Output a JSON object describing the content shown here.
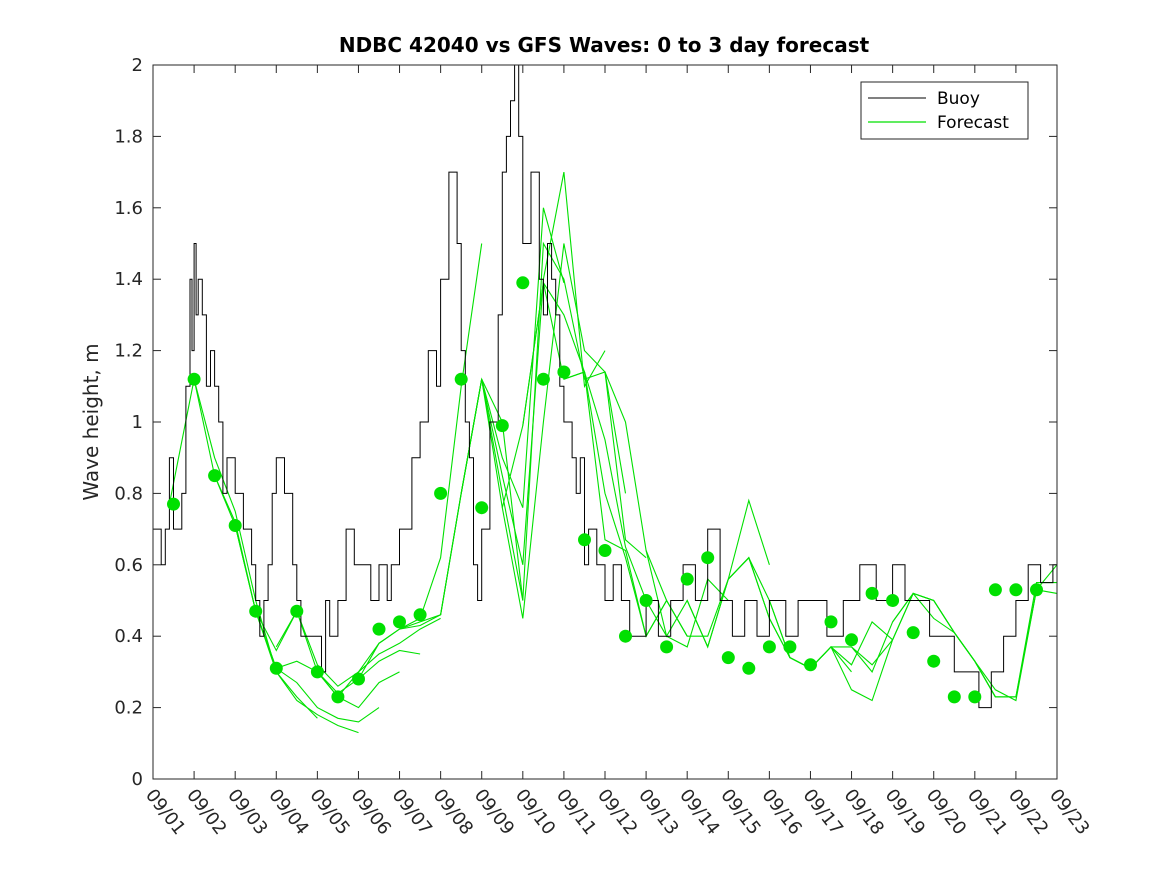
{
  "chart_data": {
    "type": "line",
    "title": "NDBC 42040 vs GFS Waves: 0 to 3 day forecast",
    "xlabel": "",
    "ylabel": "Wave height, m",
    "xlim": [
      0,
      22
    ],
    "ylim": [
      0,
      2
    ],
    "xticks": [
      0,
      1,
      2,
      3,
      4,
      5,
      6,
      7,
      8,
      9,
      10,
      11,
      12,
      13,
      14,
      15,
      16,
      17,
      18,
      19,
      20,
      21,
      22
    ],
    "xtick_labels": [
      "09/01",
      "09/02",
      "09/03",
      "09/04",
      "09/05",
      "09/06",
      "09/07",
      "09/08",
      "09/09",
      "09/10",
      "09/11",
      "09/12",
      "09/13",
      "09/14",
      "09/15",
      "09/16",
      "09/17",
      "09/18",
      "09/19",
      "09/20",
      "09/21",
      "09/22",
      "09/23"
    ],
    "yticks": [
      0,
      0.2,
      0.4,
      0.6,
      0.8,
      1,
      1.2,
      1.4,
      1.6,
      1.8,
      2
    ],
    "ytick_labels": [
      "0",
      "0.2",
      "0.4",
      "0.6",
      "0.8",
      "1",
      "1.2",
      "1.4",
      "1.6",
      "1.8",
      "2"
    ],
    "legend": {
      "position": "top-right",
      "entries": [
        {
          "label": "Buoy",
          "color": "#000000"
        },
        {
          "label": "Forecast",
          "color": "#00e000"
        }
      ]
    },
    "buoy": {
      "name": "Buoy",
      "color": "#000000",
      "x": [
        0,
        0.2,
        0.3,
        0.4,
        0.5,
        0.7,
        0.8,
        0.9,
        0.95,
        1.0,
        1.05,
        1.1,
        1.2,
        1.3,
        1.4,
        1.5,
        1.6,
        1.7,
        1.8,
        2.0,
        2.2,
        2.4,
        2.5,
        2.6,
        2.7,
        2.8,
        2.9,
        3.0,
        3.2,
        3.4,
        3.5,
        3.6,
        3.7,
        3.8,
        3.9,
        4.0,
        4.1,
        4.2,
        4.3,
        4.5,
        4.7,
        4.9,
        5.0,
        5.2,
        5.3,
        5.5,
        5.7,
        5.8,
        6.0,
        6.3,
        6.5,
        6.7,
        6.9,
        7.0,
        7.2,
        7.4,
        7.5,
        7.6,
        7.7,
        7.8,
        7.9,
        8.0,
        8.2,
        8.4,
        8.5,
        8.6,
        8.7,
        8.8,
        8.9,
        9.0,
        9.2,
        9.4,
        9.5,
        9.6,
        9.7,
        9.8,
        9.9,
        10.0,
        10.1,
        10.2,
        10.3,
        10.4,
        10.5,
        10.6,
        10.8,
        11.0,
        11.2,
        11.4,
        11.6,
        11.8,
        12.0,
        12.3,
        12.6,
        12.9,
        13.2,
        13.5,
        13.8,
        14.1,
        14.4,
        14.7,
        15.0,
        15.2,
        15.4,
        15.7,
        16.0,
        16.4,
        16.8,
        17.2,
        17.6,
        18.0,
        18.3,
        18.6,
        18.9,
        19.2,
        19.5,
        19.8,
        20.1,
        20.4,
        20.7,
        21.0,
        21.3,
        21.6,
        21.9,
        22.0
      ],
      "y": [
        0.7,
        0.6,
        0.7,
        0.9,
        0.7,
        0.8,
        1.1,
        1.4,
        1.2,
        1.5,
        1.3,
        1.4,
        1.3,
        1.1,
        1.2,
        1.1,
        1.0,
        0.8,
        0.9,
        0.8,
        0.7,
        0.6,
        0.5,
        0.4,
        0.5,
        0.6,
        0.8,
        0.9,
        0.8,
        0.6,
        0.5,
        0.4,
        0.4,
        0.4,
        0.4,
        0.4,
        0.3,
        0.5,
        0.4,
        0.5,
        0.7,
        0.6,
        0.6,
        0.6,
        0.5,
        0.6,
        0.5,
        0.6,
        0.7,
        0.9,
        1.0,
        1.2,
        1.1,
        1.4,
        1.7,
        1.5,
        1.2,
        1.0,
        0.9,
        0.6,
        0.5,
        0.7,
        1.0,
        1.3,
        1.7,
        1.8,
        1.9,
        2.0,
        1.8,
        1.5,
        1.7,
        1.4,
        1.3,
        1.5,
        1.4,
        1.3,
        1.1,
        1.0,
        1.0,
        0.9,
        0.8,
        0.9,
        0.6,
        0.7,
        0.6,
        0.5,
        0.6,
        0.5,
        0.4,
        0.4,
        0.5,
        0.4,
        0.5,
        0.6,
        0.5,
        0.7,
        0.5,
        0.4,
        0.5,
        0.4,
        0.5,
        0.5,
        0.4,
        0.5,
        0.5,
        0.4,
        0.5,
        0.6,
        0.5,
        0.6,
        0.5,
        0.5,
        0.4,
        0.4,
        0.3,
        0.3,
        0.2,
        0.3,
        0.4,
        0.5,
        0.6,
        0.55,
        0.6,
        0.6
      ]
    },
    "forecast_runs": [
      {
        "x": [
          0.4,
          1.0,
          1.5,
          2.0,
          2.5,
          3.0,
          3.5,
          4.0
        ],
        "y": [
          0.77,
          1.12,
          0.9,
          0.75,
          0.5,
          0.3,
          0.23,
          0.17
        ]
      },
      {
        "x": [
          1.0,
          1.5,
          2.0,
          2.5,
          3.0,
          3.5,
          4.0,
          4.5,
          5.0
        ],
        "y": [
          1.12,
          0.85,
          0.72,
          0.47,
          0.3,
          0.22,
          0.18,
          0.15,
          0.13
        ]
      },
      {
        "x": [
          1.5,
          2.0,
          2.5,
          3.0,
          3.5,
          4.0,
          4.5,
          5.0,
          5.5
        ],
        "y": [
          0.85,
          0.71,
          0.47,
          0.31,
          0.27,
          0.2,
          0.17,
          0.16,
          0.2
        ]
      },
      {
        "x": [
          2.0,
          2.5,
          3.0,
          3.5,
          4.0,
          4.5,
          5.0,
          5.5,
          6.0
        ],
        "y": [
          0.71,
          0.47,
          0.31,
          0.33,
          0.3,
          0.23,
          0.2,
          0.27,
          0.3
        ]
      },
      {
        "x": [
          2.5,
          3.0,
          3.5,
          4.0,
          4.5,
          5.0,
          5.5,
          6.0,
          6.5
        ],
        "y": [
          0.47,
          0.36,
          0.47,
          0.3,
          0.24,
          0.28,
          0.33,
          0.36,
          0.35
        ]
      },
      {
        "x": [
          3.0,
          3.5,
          4.0,
          4.5,
          5.0,
          5.5,
          6.0,
          6.5,
          7.0
        ],
        "y": [
          0.37,
          0.47,
          0.32,
          0.26,
          0.3,
          0.35,
          0.38,
          0.42,
          0.45
        ]
      },
      {
        "x": [
          4.0,
          4.5,
          5.0,
          5.5,
          6.0,
          6.5,
          7.0,
          7.5,
          8.0
        ],
        "y": [
          0.3,
          0.23,
          0.3,
          0.38,
          0.42,
          0.45,
          0.62,
          1.1,
          1.5
        ]
      },
      {
        "x": [
          5.0,
          5.5,
          6.0,
          6.5,
          7.0,
          7.5,
          8.0,
          8.5,
          9.0
        ],
        "y": [
          0.28,
          0.38,
          0.42,
          0.43,
          0.46,
          0.8,
          1.12,
          1.0,
          0.5
        ]
      },
      {
        "x": [
          6.0,
          6.5,
          7.0,
          7.5,
          8.0,
          8.5,
          9.0,
          9.5,
          10.0
        ],
        "y": [
          0.42,
          0.44,
          0.46,
          0.8,
          1.12,
          0.9,
          0.76,
          1.6,
          1.39
        ]
      },
      {
        "x": [
          7.0,
          7.5,
          8.0,
          8.5,
          9.0,
          9.5,
          10.0,
          10.5,
          11.0
        ],
        "y": [
          0.46,
          0.8,
          1.12,
          0.85,
          0.6,
          1.4,
          1.7,
          1.1,
          1.2
        ]
      },
      {
        "x": [
          7.5,
          8.0,
          8.5,
          9.0,
          9.5,
          10.0,
          10.5,
          11.0,
          11.5
        ],
        "y": [
          0.8,
          1.12,
          0.8,
          0.5,
          1.5,
          1.4,
          1.12,
          1.14,
          0.8
        ]
      },
      {
        "x": [
          8.0,
          8.5,
          9.0,
          9.5,
          10.0,
          10.5,
          11.0,
          11.5,
          12.0
        ],
        "y": [
          1.12,
          0.76,
          0.45,
          1.0,
          1.5,
          1.2,
          1.14,
          0.67,
          0.62
        ]
      },
      {
        "x": [
          8.5,
          9.0,
          9.5,
          10.0,
          10.5,
          11.0,
          11.5,
          12.0,
          12.5
        ],
        "y": [
          0.76,
          0.99,
          1.39,
          1.3,
          1.14,
          0.67,
          0.64,
          0.4,
          0.5
        ]
      },
      {
        "x": [
          9.0,
          9.5,
          10.0,
          10.5,
          11.0,
          11.5,
          12.0,
          12.5,
          13.0
        ],
        "y": [
          0.99,
          1.39,
          1.12,
          1.14,
          0.8,
          0.62,
          0.4,
          0.5,
          0.4
        ]
      },
      {
        "x": [
          10.0,
          10.5,
          11.0,
          11.5,
          12.0,
          12.5,
          13.0,
          13.5,
          14.0
        ],
        "y": [
          1.12,
          1.14,
          0.95,
          0.65,
          0.5,
          0.4,
          0.37,
          0.56,
          0.5
        ]
      },
      {
        "x": [
          11.0,
          11.5,
          12.0,
          12.5,
          13.0,
          13.5,
          14.0,
          14.5,
          15.0
        ],
        "y": [
          1.14,
          1.0,
          0.64,
          0.5,
          0.4,
          0.4,
          0.56,
          0.78,
          0.6
        ]
      },
      {
        "x": [
          12.0,
          12.5,
          13.0,
          13.5,
          14.0,
          14.5,
          15.0,
          15.5,
          16.0
        ],
        "y": [
          0.64,
          0.4,
          0.5,
          0.37,
          0.56,
          0.62,
          0.5,
          0.34,
          0.31
        ]
      },
      {
        "x": [
          13.0,
          13.5,
          14.0,
          14.5,
          15.0,
          15.5,
          16.0,
          16.5,
          17.0
        ],
        "y": [
          0.5,
          0.37,
          0.56,
          0.62,
          0.45,
          0.34,
          0.31,
          0.37,
          0.3
        ]
      },
      {
        "x": [
          14.0,
          14.5,
          15.0,
          15.5,
          16.0,
          16.5,
          17.0,
          17.5,
          18.0
        ],
        "y": [
          0.56,
          0.62,
          0.45,
          0.34,
          0.31,
          0.37,
          0.32,
          0.44,
          0.39
        ]
      },
      {
        "x": [
          15.0,
          15.5,
          16.0,
          16.5,
          17.0,
          17.5,
          18.0,
          18.5,
          19.0
        ],
        "y": [
          0.5,
          0.34,
          0.31,
          0.37,
          0.25,
          0.22,
          0.39,
          0.52,
          0.5
        ]
      },
      {
        "x": [
          16.0,
          16.5,
          17.0,
          17.5,
          18.0,
          18.5,
          19.0,
          19.5,
          20.0
        ],
        "y": [
          0.31,
          0.37,
          0.37,
          0.3,
          0.44,
          0.52,
          0.5,
          0.41,
          0.33
        ]
      },
      {
        "x": [
          17.0,
          17.5,
          18.0,
          18.5,
          19.0,
          19.5,
          20.0,
          20.5,
          21.0
        ],
        "y": [
          0.37,
          0.32,
          0.39,
          0.52,
          0.45,
          0.41,
          0.33,
          0.23,
          0.23
        ]
      },
      {
        "x": [
          18.0,
          18.5,
          19.0,
          19.5,
          20.0,
          20.5,
          21.0,
          21.5,
          22.0
        ],
        "y": [
          0.44,
          0.52,
          0.5,
          0.41,
          0.33,
          0.23,
          0.23,
          0.55,
          0.55
        ]
      },
      {
        "x": [
          19.0,
          19.5,
          20.0,
          20.5,
          21.0,
          21.5,
          22.0
        ],
        "y": [
          0.5,
          0.41,
          0.33,
          0.25,
          0.22,
          0.53,
          0.6
        ]
      },
      {
        "x": [
          20.0,
          20.5,
          21.0,
          21.5,
          22.0
        ],
        "y": [
          0.33,
          0.23,
          0.23,
          0.53,
          0.52
        ]
      }
    ],
    "forecast_points": {
      "name": "Forecast",
      "color": "#00e000",
      "x": [
        0.5,
        1.0,
        1.5,
        2.0,
        2.5,
        3.0,
        3.5,
        4.0,
        4.5,
        5.0,
        5.5,
        6.0,
        6.5,
        7.0,
        7.5,
        8.0,
        8.5,
        9.0,
        9.5,
        10.0,
        10.5,
        11.0,
        11.5,
        12.0,
        12.5,
        13.0,
        13.5,
        14.0,
        14.5,
        15.0,
        15.5,
        16.0,
        16.5,
        17.0,
        17.5,
        18.0,
        18.5,
        19.0,
        19.5,
        20.0,
        20.5,
        21.0,
        21.5
      ],
      "y": [
        0.77,
        1.12,
        0.85,
        0.71,
        0.47,
        0.31,
        0.47,
        0.3,
        0.23,
        0.28,
        0.42,
        0.44,
        0.46,
        0.8,
        1.12,
        0.76,
        0.99,
        1.39,
        1.12,
        1.14,
        0.67,
        0.64,
        0.4,
        0.5,
        0.37,
        0.56,
        0.62,
        0.34,
        0.31,
        0.37,
        0.37,
        0.32,
        0.44,
        0.39,
        0.52,
        0.5,
        0.41,
        0.33,
        0.23,
        0.23,
        0.53,
        0.53,
        0.53
      ]
    }
  }
}
